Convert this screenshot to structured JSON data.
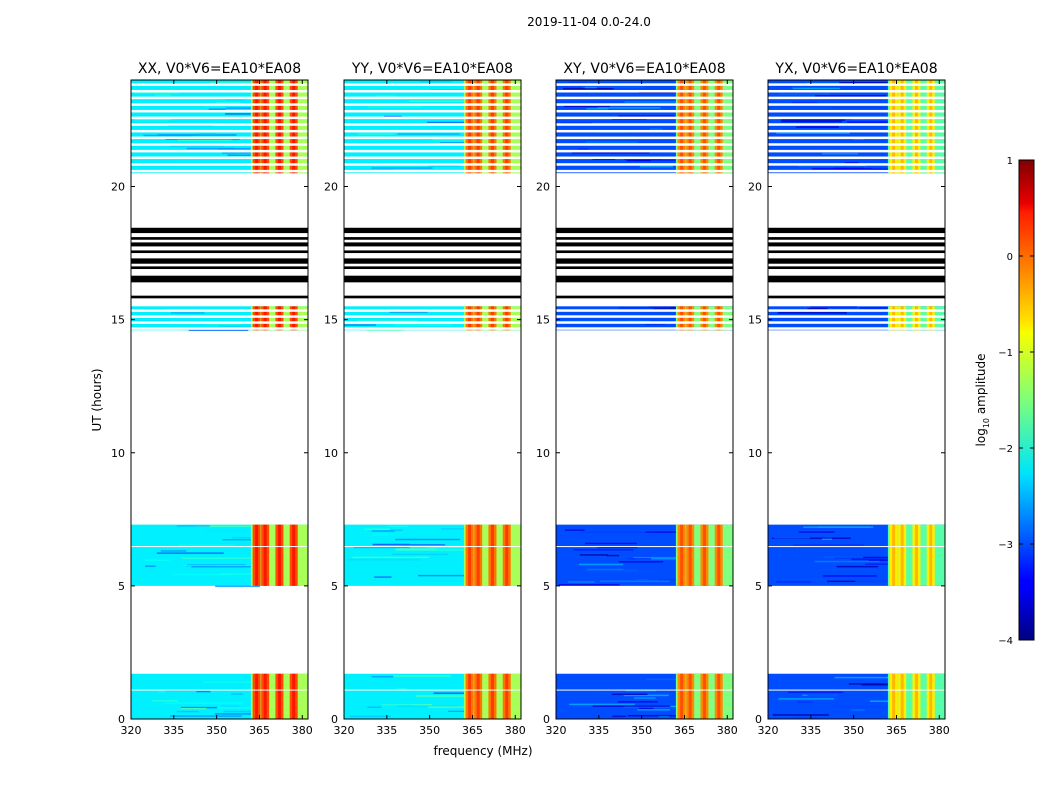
{
  "chart_data": {
    "type": "heatmap",
    "title": "2019-11-04 0.0-24.0",
    "xlabel": "frequency (MHz)",
    "ylabel": "UT (hours)",
    "xlim": [
      320,
      382
    ],
    "ylim": [
      0,
      24
    ],
    "x_ticks": [
      "320",
      "335",
      "350",
      "365",
      "380"
    ],
    "y_ticks": [
      "0",
      "5",
      "10",
      "15",
      "20"
    ],
    "panels": [
      {
        "title": "XX, V0*V6=EA10*EA08",
        "background_level": -2.2,
        "band_level": 0.0,
        "gap_level": -1.3
      },
      {
        "title": "YY, V0*V6=EA10*EA08",
        "background_level": -2.2,
        "band_level": -0.2,
        "gap_level": -1.3
      },
      {
        "title": "XY, V0*V6=EA10*EA08",
        "background_level": -3.0,
        "band_level": -0.3,
        "gap_level": -1.5
      },
      {
        "title": "YX, V0*V6=EA10*EA08",
        "background_level": -3.0,
        "band_level": -0.8,
        "gap_level": -1.7
      }
    ],
    "bright_band_mhz": [
      362,
      382
    ],
    "bright_lines_mhz": [
      367,
      372,
      377
    ],
    "data_segments_ut": [
      [
        0.0,
        1.7
      ],
      [
        5.0,
        7.3
      ],
      [
        14.6,
        15.5
      ],
      [
        20.5,
        24.0
      ]
    ],
    "flagged_stripes_ut": [
      [
        16.4,
        16.65
      ],
      [
        17.1,
        17.3
      ],
      [
        17.75,
        17.9
      ],
      [
        18.25,
        18.45
      ],
      [
        15.8,
        15.9
      ],
      [
        16.9,
        17.0
      ],
      [
        17.5,
        17.6
      ],
      [
        18.0,
        18.1
      ]
    ],
    "colorbar": {
      "label_prefix": "log",
      "label_sub": "10",
      "label_suffix": " amplitude",
      "min": -4,
      "max": 1,
      "ticks": [
        "1",
        "0",
        "−1",
        "−2",
        "−3",
        "−4"
      ],
      "colormap": "jet"
    }
  }
}
